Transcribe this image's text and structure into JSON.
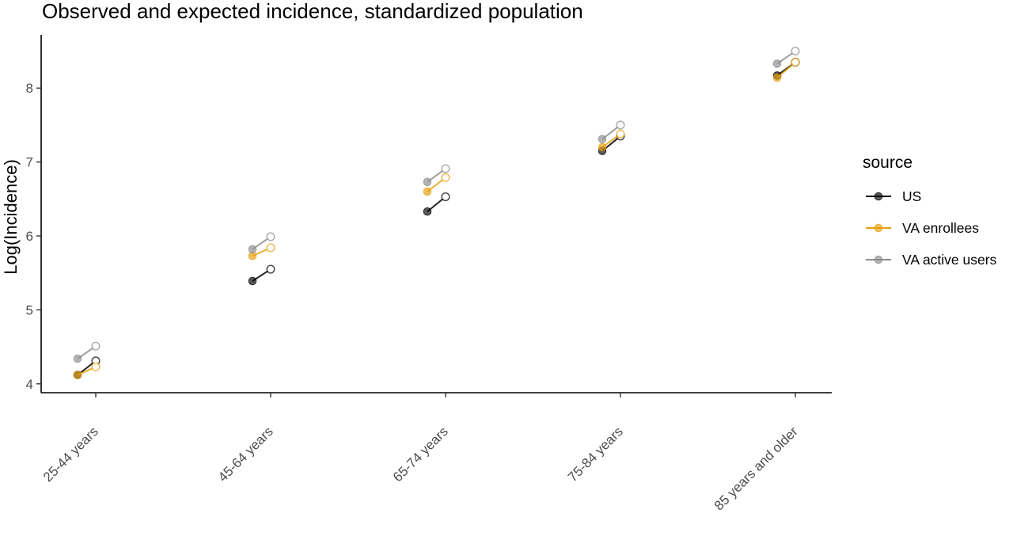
{
  "chart_data": {
    "type": "scatter",
    "title": "Observed and expected incidence, standardized population",
    "xlabel": "",
    "ylabel": "Log(Incidence)",
    "categories": [
      "25-44 years",
      "45-64 years",
      "65-74 years",
      "75-84 years",
      "85 years and older"
    ],
    "y_ticks": [
      4,
      5,
      6,
      7,
      8
    ],
    "ylim": [
      3.88,
      8.72
    ],
    "grid": false,
    "legend": {
      "title": "source",
      "position": "right"
    },
    "marker_styles": {
      "filled": "observed (left point)",
      "hollow": "expected (right point)"
    },
    "series": [
      {
        "name": "US",
        "color": "#000000",
        "observed": [
          4.12,
          5.39,
          6.33,
          7.15,
          8.17
        ],
        "expected": [
          4.31,
          5.55,
          6.53,
          7.35,
          8.35
        ]
      },
      {
        "name": "VA enrollees",
        "color": "#E6A00E",
        "observed": [
          4.12,
          5.73,
          6.6,
          7.2,
          8.14
        ],
        "expected": [
          4.23,
          5.84,
          6.79,
          7.38,
          8.35
        ]
      },
      {
        "name": "VA active users",
        "color": "#8C8C8C",
        "observed": [
          4.34,
          5.82,
          6.73,
          7.31,
          8.33
        ],
        "expected": [
          4.51,
          5.99,
          6.91,
          7.5,
          8.5
        ]
      }
    ]
  }
}
